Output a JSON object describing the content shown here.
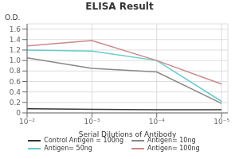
{
  "chart_data": {
    "type": "line",
    "title": "ELISA Result",
    "x_label": "Serial Dilutions of Antibody",
    "y_label": "O.D.",
    "x": [
      0.01,
      0.001,
      0.0001,
      1e-05
    ],
    "series": [
      {
        "name": "Control Antigen = 100ng",
        "color": "#333333",
        "values": [
          0.08,
          0.07,
          0.06,
          0.06
        ]
      },
      {
        "name": "Antigen= 10ng",
        "color": "#888888",
        "values": [
          1.05,
          0.85,
          0.78,
          0.18
        ]
      },
      {
        "name": "Antigen= 50ng",
        "color": "#66cccc",
        "values": [
          1.2,
          1.18,
          1.0,
          0.22
        ]
      },
      {
        "name": "Antigen= 100ng",
        "color": "#cc8888",
        "values": [
          1.28,
          1.38,
          1.0,
          0.55
        ]
      }
    ],
    "xlim": [
      0.01,
      8e-06
    ],
    "xticks": [
      {
        "value": 0.01,
        "label": "10⁻²"
      },
      {
        "value": 0.001,
        "label": "10⁻³"
      },
      {
        "value": 0.0001,
        "label": "10⁻⁴"
      },
      {
        "value": 1e-05,
        "label": "10⁻⁵"
      }
    ],
    "ylim": [
      0,
      1.7
    ],
    "yticks": [
      0,
      0.2,
      0.4,
      0.6,
      0.8,
      {
        "value": 1,
        "label": "1.0"
      },
      1.2,
      1.4,
      1.6
    ],
    "log": "x",
    "grid": true,
    "legend": "bottom"
  }
}
